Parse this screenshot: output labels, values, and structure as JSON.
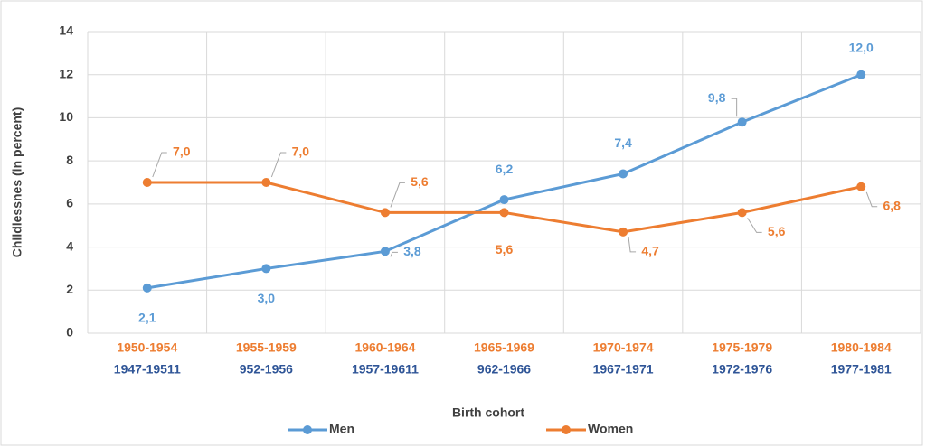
{
  "chart_data": {
    "type": "line",
    "x_label": "Birth cohort",
    "y_label": "Childlessnes (in percent)",
    "categories": [
      "1950-1954",
      "1955-1959",
      "1960-1964",
      "1965-1969",
      "1970-1974",
      "1975-1979",
      "1980-1984"
    ],
    "categories_color": "#ed7d31",
    "categories_2": [
      "1947-19511",
      "952-1956",
      "1957-19611",
      "962-1966",
      "1967-1971",
      "1972-1976",
      "1977-1981"
    ],
    "categories_2_color": "#2f5597",
    "series": [
      {
        "name": "Men",
        "color": "#5b9bd5",
        "values": [
          2.1,
          3.0,
          3.8,
          6.2,
          7.4,
          9.8,
          12.0
        ],
        "value_labels": [
          "2,1",
          "3,0",
          "3,8",
          "6,2",
          "7,4",
          "9,8",
          "12,0"
        ]
      },
      {
        "name": "Women",
        "color": "#ed7d31",
        "values": [
          7.0,
          7.0,
          5.6,
          5.6,
          4.7,
          5.6,
          6.8
        ],
        "value_labels": [
          "7,0",
          "7,0",
          "5,6",
          "5,6",
          "4,7",
          "5,6",
          "6,8"
        ]
      }
    ],
    "ylim": [
      0,
      14
    ],
    "yticks": [
      0,
      2,
      4,
      6,
      8,
      10,
      12,
      14
    ],
    "grid": true,
    "legend": "bottom"
  }
}
